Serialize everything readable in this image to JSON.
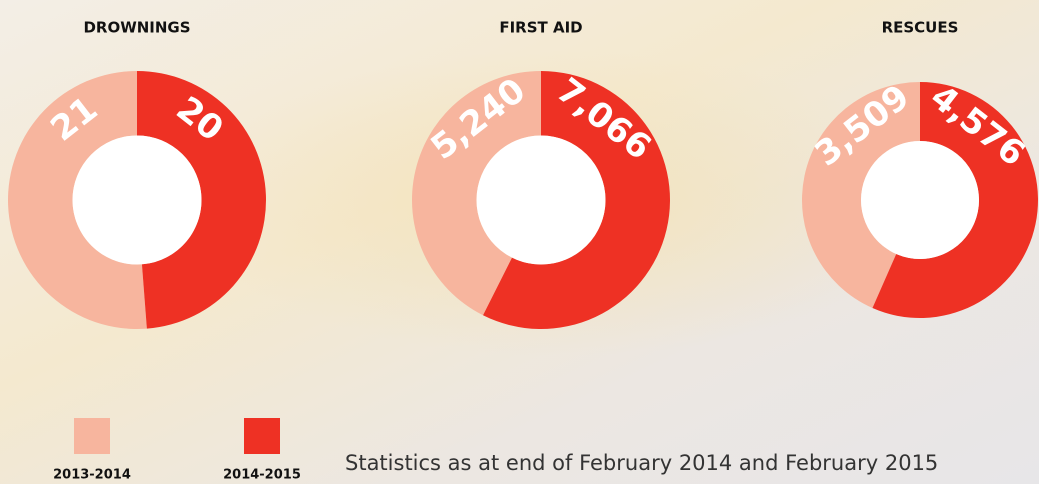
{
  "chart_data": [
    {
      "type": "pie",
      "title": "DROWNINGS",
      "values": [
        21,
        20
      ],
      "colors": [
        "#f7b59e",
        "#ee3124"
      ]
    },
    {
      "type": "pie",
      "title": "FIRST AID",
      "values": [
        5240,
        7066
      ],
      "value_labels": [
        "5,240",
        "7,066"
      ],
      "colors": [
        "#f7b59e",
        "#ee3124"
      ]
    },
    {
      "type": "pie",
      "title": "RESCUES",
      "values": [
        3509,
        4576
      ],
      "value_labels": [
        "3,509",
        "4,576"
      ],
      "colors": [
        "#f7b59e",
        "#ee3124"
      ]
    }
  ],
  "legend": [
    {
      "label": "2013-2014",
      "color": "#f7b59e"
    },
    {
      "label": "2014-2015",
      "color": "#ee3124"
    }
  ],
  "note": "Statistics as at end of February 2014 and February 2015"
}
